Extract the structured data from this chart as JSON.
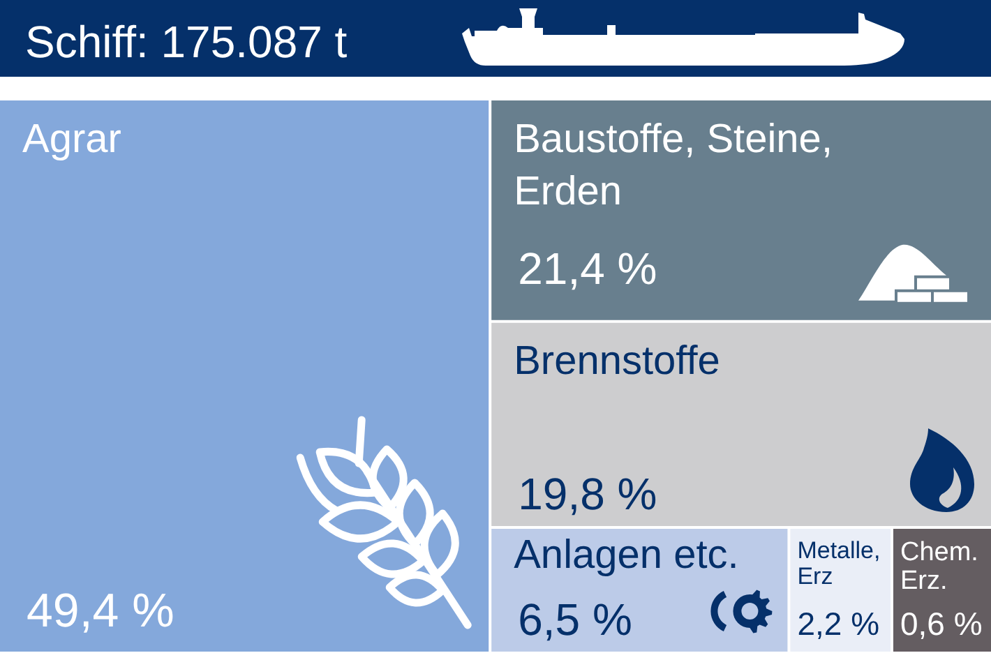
{
  "chart_data": {
    "type": "other",
    "title": "Schiff: 175.087 t",
    "categories": [
      "Agrar",
      "Baustoffe, Steine, Erden",
      "Brennstoffe",
      "Anlagen etc.",
      "Metalle, Erz",
      "Chem. Erz."
    ],
    "values": [
      49.4,
      21.4,
      19.8,
      6.5,
      2.2,
      0.6
    ],
    "colors": [
      "#84a8db",
      "#687f8e",
      "#cdcdcf",
      "#bccbe8",
      "#eaeef7",
      "#645d61"
    ],
    "value_labels": [
      "49,4 %",
      "21,4 %",
      "19,8 %",
      "6,5 %",
      "2,2 %",
      "0,6 %"
    ]
  }
}
